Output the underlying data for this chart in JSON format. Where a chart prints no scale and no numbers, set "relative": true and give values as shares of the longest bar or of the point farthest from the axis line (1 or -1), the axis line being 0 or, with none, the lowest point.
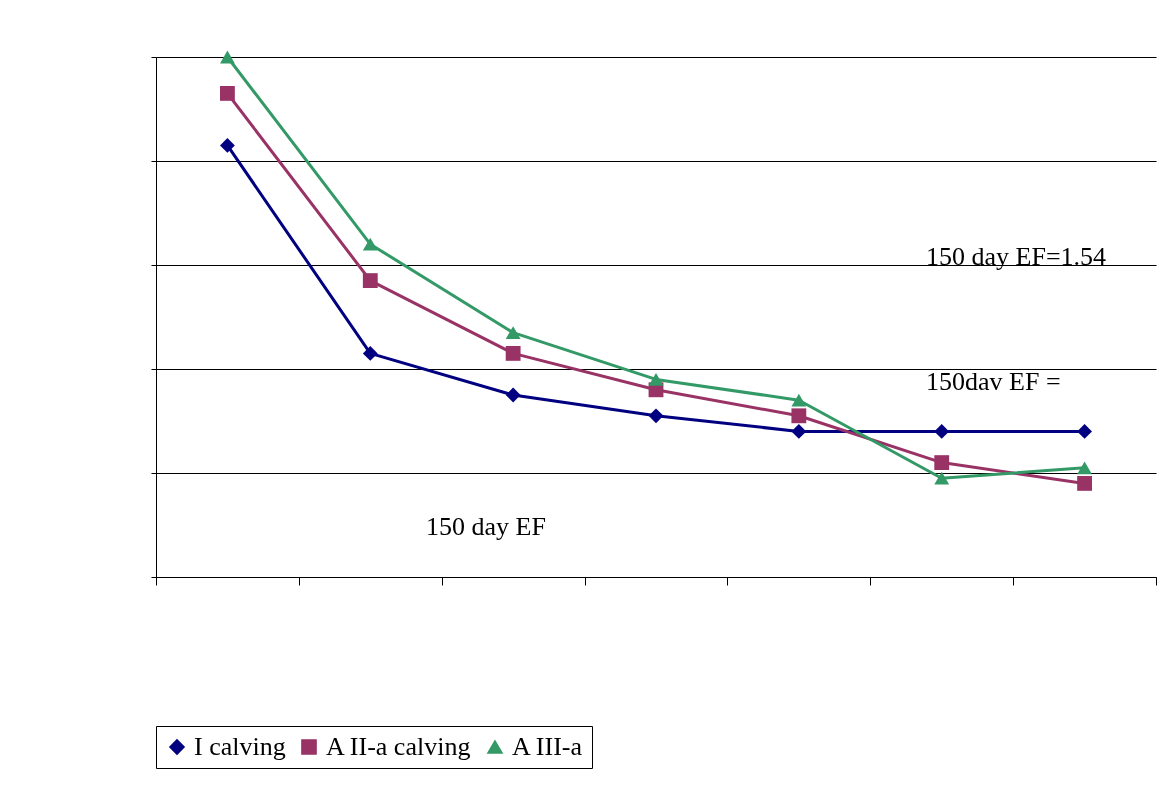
{
  "chart_data": {
    "type": "line",
    "relative": true,
    "categories": [
      null,
      null,
      null,
      null,
      null,
      null,
      null
    ],
    "series": [
      {
        "name": "I calving",
        "color": "#000080",
        "marker": "diamond",
        "values": [
          0.83,
          0.43,
          0.35,
          0.31,
          0.28,
          0.28,
          0.28
        ]
      },
      {
        "name": "A II-a calving",
        "color": "#993366",
        "marker": "square",
        "values": [
          0.93,
          0.57,
          0.43,
          0.36,
          0.31,
          0.22,
          0.18
        ]
      },
      {
        "name": "A III-a",
        "color": "#339966",
        "marker": "triangle",
        "values": [
          1,
          0.64,
          0.47,
          0.38,
          0.34,
          0.19,
          0.21
        ]
      }
    ],
    "legend": "bottom",
    "annotations": [
      "150 day EF=1.54",
      "150dav EF =",
      "150 day EF"
    ]
  }
}
